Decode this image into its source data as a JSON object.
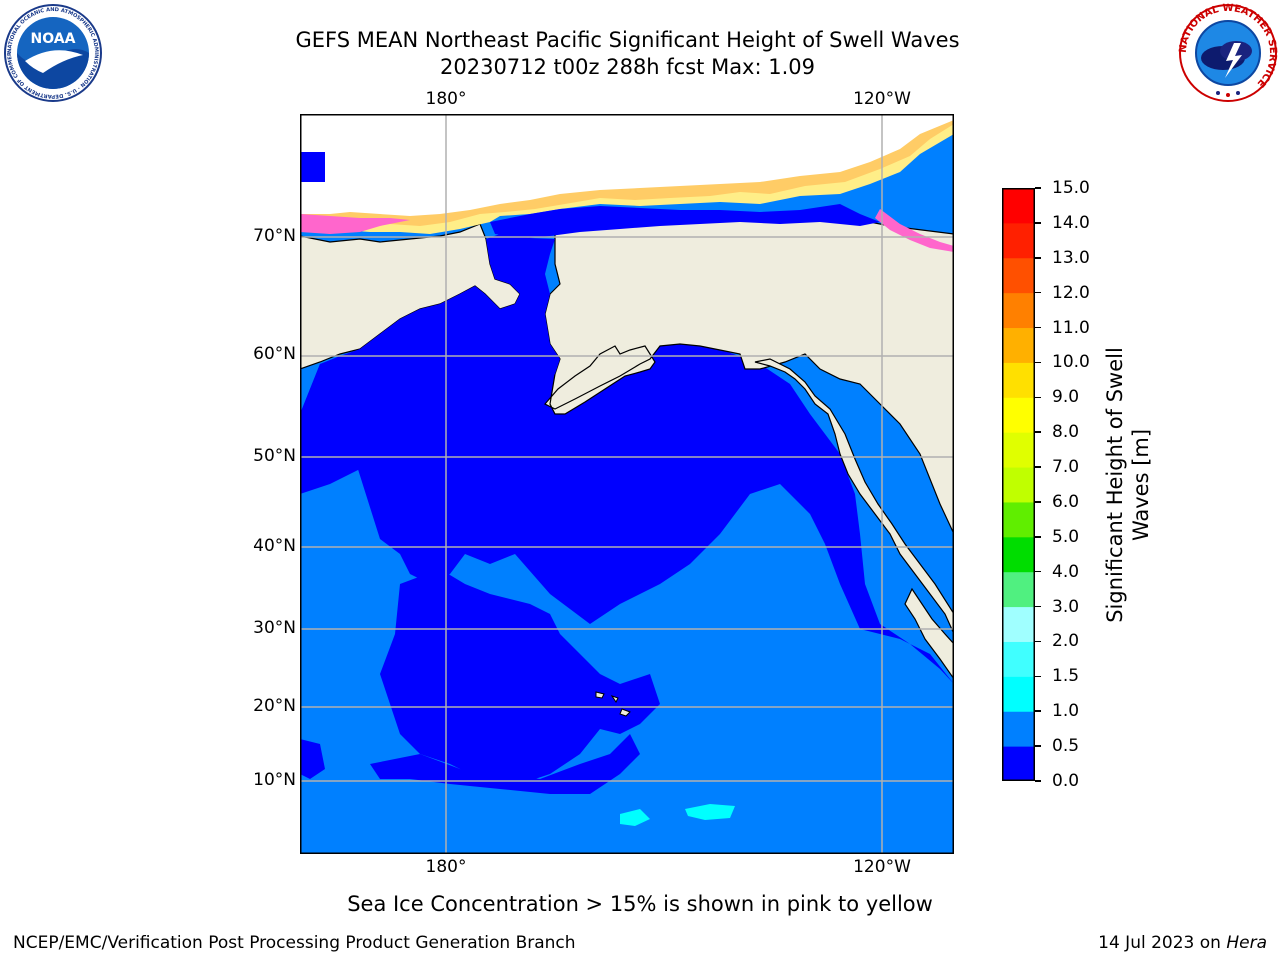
{
  "header": {
    "title_line1": "GEFS MEAN Northeast Pacific Significant Height of Swell Waves",
    "title_line2": "20230712 t00z 288h fcst   Max: 1.09"
  },
  "logos": {
    "left": {
      "name": "noaa-logo",
      "text": "NOAA",
      "ring_text": "NATIONAL OCEANIC AND ATMOSPHERIC ADMINISTRATION · U.S. DEPARTMENT OF COMMERCE"
    },
    "right": {
      "name": "nws-logo",
      "ring_text": "NATIONAL WEATHER SERVICE"
    }
  },
  "map": {
    "top_lon_labels": [
      "180°",
      "120°W"
    ],
    "bottom_lon_labels": [
      "180°",
      "120°W"
    ],
    "lat_labels": [
      "70°N",
      "60°N",
      "50°N",
      "40°N",
      "30°N",
      "20°N",
      "10°N"
    ],
    "colors": {
      "land": "#efedde",
      "ocean_low": "#0000ff",
      "ocean_mid": "#0080ff",
      "ocean_cyan": "#00ffff",
      "ice_pink": "#ff66cc",
      "ice_orange": "#ffcc66",
      "ice_yellow": "#ffee88",
      "grid": "#b0b0b0"
    }
  },
  "colorbar": {
    "label_line1": "Significant Height of Swell",
    "label_line2": "Waves [m]",
    "ticks": [
      "15.0",
      "14.0",
      "13.0",
      "12.0",
      "11.0",
      "10.0",
      "9.0",
      "8.0",
      "7.0",
      "6.0",
      "5.0",
      "4.0",
      "3.0",
      "2.0",
      "1.5",
      "1.0",
      "0.5",
      "0.0"
    ],
    "colors": [
      "#0000ff",
      "#0080ff",
      "#00ffff",
      "#40ffff",
      "#a0ffff",
      "#50f080",
      "#00dd00",
      "#60ee00",
      "#c0ff00",
      "#e0ff00",
      "#ffff00",
      "#ffe000",
      "#ffb000",
      "#ff8000",
      "#ff5000",
      "#ff2000",
      "#ff0000"
    ]
  },
  "footer": {
    "note": "Sea Ice Concentration > 15% is shown in pink to yellow",
    "left": "NCEP/EMC/Verification Post Processing Product Generation Branch",
    "right_date": "14 Jul 2023 on ",
    "right_machine": "Hera"
  }
}
